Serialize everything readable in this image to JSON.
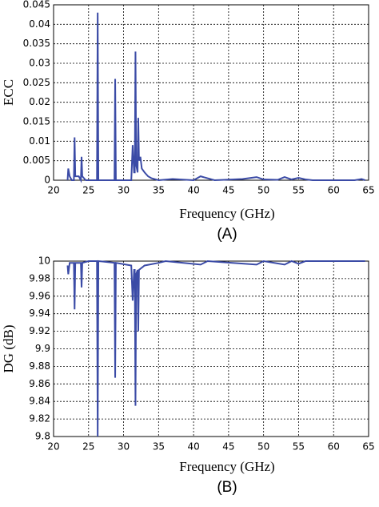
{
  "chart_data": [
    {
      "type": "line",
      "xlabel": "Frequency (GHz)",
      "ylabel": "ECC",
      "caption": "(A)",
      "color": "#3b4ba6",
      "grid": true,
      "xlim": [
        20,
        65
      ],
      "xticks": [
        20,
        25,
        30,
        35,
        40,
        45,
        50,
        55,
        60,
        65
      ],
      "ylim": [
        0,
        0.045
      ],
      "yticks": [
        0,
        0.005,
        0.01,
        0.015,
        0.02,
        0.025,
        0.03,
        0.035,
        0.04,
        0.045
      ],
      "x": [
        22,
        22.1,
        22.3,
        22.6,
        22.9,
        23,
        23.1,
        23.6,
        23.9,
        24,
        24.1,
        24.6,
        26.2,
        26.3,
        26.4,
        28.7,
        28.8,
        28.9,
        31.1,
        31.3,
        31.5,
        31.6,
        31.7,
        31.8,
        32,
        32.1,
        32.2,
        32.4,
        32.6,
        33,
        33.5,
        34,
        35,
        37,
        38,
        40,
        41,
        42,
        43,
        47,
        49,
        50,
        52,
        53,
        54,
        55,
        56,
        57,
        63,
        64,
        64.5
      ],
      "values": [
        0,
        0.003,
        0.001,
        0,
        0,
        0.011,
        0.001,
        0.001,
        0,
        0.006,
        0.001,
        0,
        0,
        0.043,
        0,
        0,
        0.026,
        0,
        0,
        0.009,
        0.002,
        0.002,
        0.033,
        0.004,
        0.002,
        0.016,
        0.005,
        0.006,
        0.003,
        0.002,
        0.001,
        0.0005,
        0,
        0.0003,
        0.0002,
        0,
        0.001,
        0.0005,
        0,
        0.0003,
        0.0008,
        0.0002,
        0.0001,
        0.0008,
        0.0002,
        0.0006,
        0.0002,
        0,
        0,
        0.0003,
        0
      ]
    },
    {
      "type": "line",
      "xlabel": "Frequency (GHz)",
      "ylabel": "DG (dB)",
      "caption": "(B)",
      "color": "#3b4ba6",
      "grid": true,
      "xlim": [
        20,
        65
      ],
      "xticks": [
        20,
        25,
        30,
        35,
        40,
        45,
        50,
        55,
        60,
        65
      ],
      "ylim": [
        9.8,
        10
      ],
      "yticks": [
        9.8,
        9.82,
        9.84,
        9.86,
        9.88,
        9.9,
        9.92,
        9.94,
        9.96,
        9.98,
        10
      ],
      "x": [
        22,
        22.1,
        22.3,
        22.9,
        23,
        23.1,
        23.9,
        24,
        24.1,
        25,
        26.2,
        26.3,
        26.4,
        28.7,
        28.8,
        28.9,
        31.1,
        31.3,
        31.5,
        31.6,
        31.7,
        31.8,
        32,
        32.1,
        32.2,
        33,
        35,
        36,
        41,
        42,
        49,
        50,
        53,
        54,
        55,
        56,
        64.5
      ],
      "values": [
        9.995,
        9.985,
        9.998,
        9.998,
        9.945,
        9.998,
        9.998,
        9.97,
        9.998,
        10,
        10,
        9.8,
        10,
        9.998,
        9.867,
        9.998,
        9.995,
        9.955,
        9.99,
        9.99,
        9.835,
        9.985,
        9.99,
        9.92,
        9.99,
        9.995,
        9.998,
        10,
        9.996,
        10,
        9.996,
        10,
        9.996,
        10,
        9.997,
        10,
        10
      ]
    }
  ]
}
